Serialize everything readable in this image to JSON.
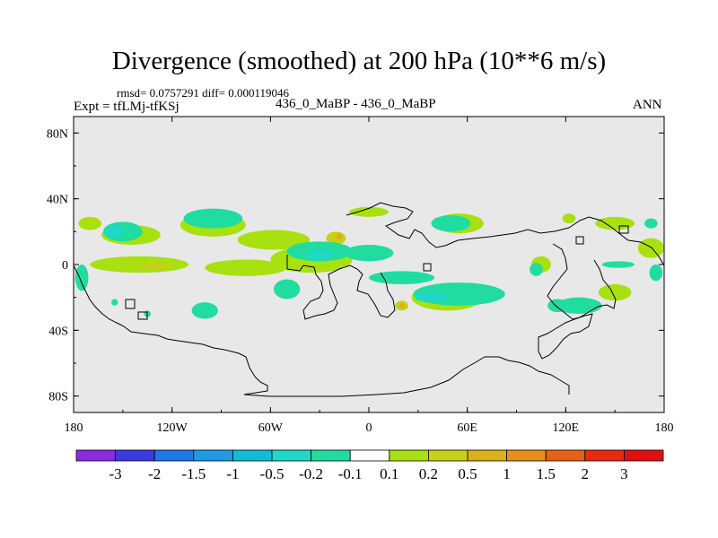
{
  "header": {
    "title": "Divergence (smoothed) at 200 hPa (10**6 m/s)",
    "stats": "rmsd= 0.0757291  diff= 0.000119046",
    "experiment": "Expt = tfLMj-tfKSj",
    "comparison": "436_0_MaBP - 436_0_MaBP",
    "season": "ANN"
  },
  "chart_data": {
    "type": "heatmap",
    "title": "Divergence (smoothed) at 200 hPa (10**6 m/s)",
    "subtitle": "436_0_MaBP - 436_0_MaBP",
    "projection": "cylindrical equidistant",
    "xlim": [
      -180,
      180
    ],
    "ylim": [
      -90,
      90
    ],
    "x_ticks": [
      {
        "value": -180,
        "label": "180"
      },
      {
        "value": -120,
        "label": "120W"
      },
      {
        "value": -60,
        "label": "60W"
      },
      {
        "value": 0,
        "label": "0"
      },
      {
        "value": 60,
        "label": "60E"
      },
      {
        "value": 120,
        "label": "120E"
      },
      {
        "value": 180,
        "label": "180"
      }
    ],
    "y_ticks": [
      {
        "value": 80,
        "label": "80N"
      },
      {
        "value": 40,
        "label": "40N"
      },
      {
        "value": 0,
        "label": "0"
      },
      {
        "value": -40,
        "label": "40S"
      },
      {
        "value": -80,
        "label": "80S"
      }
    ],
    "background_color": "#e8e8e8",
    "colorbar": {
      "labels": [
        "-3",
        "-2",
        "-1.5",
        "-1",
        "-0.5",
        "-0.2",
        "-0.1",
        "0.1",
        "0.2",
        "0.5",
        "1",
        "1.5",
        "2",
        "3"
      ],
      "colors": [
        "#8a2be2",
        "#3a3ae0",
        "#1e78e6",
        "#1e9be6",
        "#10bcd8",
        "#20d8c8",
        "#20dca0",
        "#ffffff",
        "#a8e010",
        "#c8d018",
        "#dcb018",
        "#e8901c",
        "#e86014",
        "#e82a10",
        "#e01010"
      ]
    },
    "contour_regions": [
      {
        "level": "0.1 to 0.2",
        "color": "#a8e010",
        "lon": -170,
        "lat": 25,
        "rlon": 7,
        "rlat": 4
      },
      {
        "level": "0.1 to 0.2",
        "color": "#a8e010",
        "lon": -145,
        "lat": 18,
        "rlon": 18,
        "rlat": 6
      },
      {
        "level": "0.1 to 0.2",
        "color": "#a8e010",
        "lon": -95,
        "lat": 24,
        "rlon": 20,
        "rlat": 7
      },
      {
        "level": "0.1 to 0.2",
        "color": "#a8e010",
        "lon": -58,
        "lat": 15,
        "rlon": 22,
        "rlat": 6
      },
      {
        "level": "0.1 to 0.2",
        "color": "#a8e010",
        "lon": -140,
        "lat": 0,
        "rlon": 30,
        "rlat": 5
      },
      {
        "level": "0.1 to 0.2",
        "color": "#a8e010",
        "lon": -75,
        "lat": -2,
        "rlon": 25,
        "rlat": 5
      },
      {
        "level": "0.1 to 0.2",
        "color": "#a8e010",
        "lon": -35,
        "lat": 3,
        "rlon": 25,
        "rlat": 8
      },
      {
        "level": "0.1 to 0.2",
        "color": "#a8e010",
        "lon": 0,
        "lat": 32,
        "rlon": 12,
        "rlat": 3
      },
      {
        "level": "0.1 to 0.2",
        "color": "#a8e010",
        "lon": 55,
        "lat": 25,
        "rlon": 15,
        "rlat": 6
      },
      {
        "level": "0.1 to 0.2",
        "color": "#a8e010",
        "lon": 150,
        "lat": 25,
        "rlon": 12,
        "rlat": 4
      },
      {
        "level": "0.1 to 0.2",
        "color": "#a8e010",
        "lon": 172,
        "lat": 10,
        "rlon": 8,
        "rlat": 6
      },
      {
        "level": "0.1 to 0.2",
        "color": "#a8e010",
        "lon": 48,
        "lat": -20,
        "rlon": 22,
        "rlat": 8
      },
      {
        "level": "0.1 to 0.2",
        "color": "#a8e010",
        "lon": 150,
        "lat": -17,
        "rlon": 10,
        "rlat": 5
      },
      {
        "level": "0.1 to 0.2",
        "color": "#a8e010",
        "lon": 105,
        "lat": 0,
        "rlon": 6,
        "rlat": 5
      },
      {
        "level": "0.1 to 0.2",
        "color": "#a8e010",
        "lon": 122,
        "lat": 28,
        "rlon": 4,
        "rlat": 3
      },
      {
        "level": "0.2 to 0.5",
        "color": "#c8d018",
        "lon": -20,
        "lat": 16,
        "rlon": 6,
        "rlat": 4
      },
      {
        "level": "0.2 to 0.5",
        "color": "#c8d018",
        "lon": -130,
        "lat": -1,
        "rlon": 10,
        "rlat": 2
      },
      {
        "level": "0.2 to 0.5",
        "color": "#c8d018",
        "lon": 20,
        "lat": -25,
        "rlon": 4,
        "rlat": 3
      },
      {
        "level": "-0.1 to -0.2",
        "color": "#20dca0",
        "lon": -150,
        "lat": 20,
        "rlon": 12,
        "rlat": 6
      },
      {
        "level": "-0.1 to -0.2",
        "color": "#20dca0",
        "lon": -95,
        "lat": 28,
        "rlon": 18,
        "rlat": 6
      },
      {
        "level": "-0.1 to -0.2",
        "color": "#20dca0",
        "lon": -30,
        "lat": 8,
        "rlon": 20,
        "rlat": 6
      },
      {
        "level": "-0.1 to -0.2",
        "color": "#20dca0",
        "lon": 0,
        "lat": 7,
        "rlon": 15,
        "rlat": 5
      },
      {
        "level": "-0.1 to -0.2",
        "color": "#20dca0",
        "lon": 50,
        "lat": 25,
        "rlon": 12,
        "rlat": 5
      },
      {
        "level": "-0.1 to -0.2",
        "color": "#20dca0",
        "lon": 20,
        "lat": -8,
        "rlon": 20,
        "rlat": 4
      },
      {
        "level": "-0.1 to -0.2",
        "color": "#20dca0",
        "lon": 55,
        "lat": -18,
        "rlon": 28,
        "rlat": 7
      },
      {
        "level": "-0.1 to -0.2",
        "color": "#20dca0",
        "lon": 152,
        "lat": 0,
        "rlon": 10,
        "rlat": 2
      },
      {
        "level": "-0.1 to -0.2",
        "color": "#20dca0",
        "lon": 128,
        "lat": -25,
        "rlon": 14,
        "rlat": 5
      },
      {
        "level": "-0.1 to -0.2",
        "color": "#20dca0",
        "lon": -100,
        "lat": -28,
        "rlon": 8,
        "rlat": 5
      },
      {
        "level": "-0.1 to -0.2",
        "color": "#20dca0",
        "lon": -50,
        "lat": -15,
        "rlon": 8,
        "rlat": 6
      },
      {
        "level": "-0.1 to -0.2",
        "color": "#20dca0",
        "lon": -175,
        "lat": -8,
        "rlon": 4,
        "rlat": 8
      },
      {
        "level": "-0.1 to -0.2",
        "color": "#20dca0",
        "lon": 175,
        "lat": -5,
        "rlon": 4,
        "rlat": 5
      },
      {
        "level": "-0.1 to -0.2",
        "color": "#20dca0",
        "lon": -155,
        "lat": -23,
        "rlon": 2,
        "rlat": 2
      },
      {
        "level": "-0.1 to -0.2",
        "color": "#20dca0",
        "lon": -135,
        "lat": -30,
        "rlon": 2,
        "rlat": 2
      },
      {
        "level": "-0.1 to -0.2",
        "color": "#20dca0",
        "lon": 172,
        "lat": 25,
        "rlon": 4,
        "rlat": 3
      },
      {
        "level": "-0.1 to -0.2",
        "color": "#20dca0",
        "lon": 102,
        "lat": -3,
        "rlon": 4,
        "rlat": 4
      },
      {
        "level": "-0.1 to -0.2",
        "color": "#20dca0",
        "lon": 115,
        "lat": -25,
        "rlon": 6,
        "rlat": 4
      },
      {
        "level": "-0.2 to -0.5",
        "color": "#20d8c8",
        "lon": -155,
        "lat": 20,
        "rlon": 5,
        "rlat": 4
      },
      {
        "level": "-0.2 to -0.5",
        "color": "#20d8c8",
        "lon": 38,
        "lat": -20,
        "rlon": 10,
        "rlat": 3
      },
      {
        "level": "-0.2 to -0.5",
        "color": "#20d8c8",
        "lon": -30,
        "lat": 6,
        "rlon": 8,
        "rlat": 3
      },
      {
        "level": "0.5 to 1",
        "color": "#dcb018",
        "lon": -18,
        "lat": 17,
        "rlon": 2,
        "rlat": 2
      },
      {
        "level": "0.5 to 1",
        "color": "#dcb018",
        "lon": 20,
        "lat": -25,
        "rlon": 1.5,
        "rlat": 1.5
      }
    ]
  }
}
